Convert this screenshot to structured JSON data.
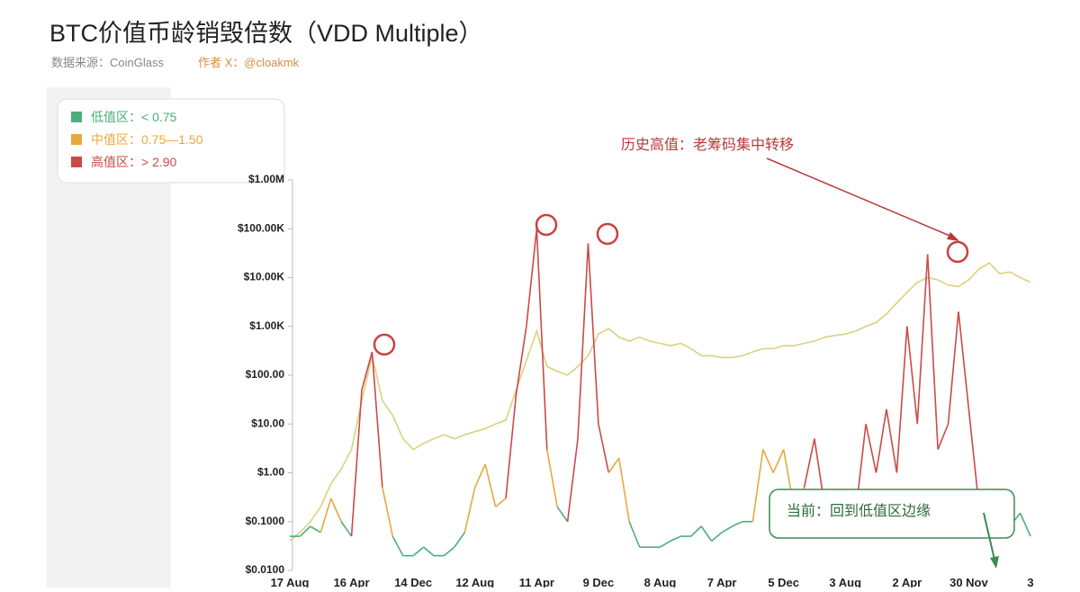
{
  "chart_data": {
    "type": "line",
    "title": "BTC价值币龄销毁倍数（VDD Multiple）",
    "source": "数据来源：CoinGlass",
    "author": "作者 X：@cloakmk",
    "log_scale": true,
    "grid": false,
    "legend_position": "upper left",
    "zones": [
      {
        "label": "低值区：< 0.75",
        "color": "#4dae7a"
      },
      {
        "label": "中值区：0.75—1.50",
        "color": "#e8a83e"
      },
      {
        "label": "高值区：> 2.90",
        "color": "#cc4a46"
      }
    ],
    "annotations": [
      "历史高值：老筹码集中转移",
      "当前：回到低值区边缘"
    ],
    "categories": [
      "17 Aug",
      null,
      null,
      null,
      null,
      null,
      "16 Apr",
      null,
      null,
      null,
      null,
      null,
      "14 Dec",
      null,
      null,
      null,
      null,
      null,
      "12 Aug",
      null,
      null,
      null,
      null,
      null,
      "11 Apr",
      null,
      null,
      null,
      null,
      null,
      "9 Dec",
      null,
      null,
      null,
      null,
      null,
      "8 Aug",
      null,
      null,
      null,
      null,
      null,
      "7 Apr",
      null,
      null,
      null,
      null,
      null,
      "5 Dec",
      null,
      null,
      null,
      null,
      null,
      "3 Aug",
      null,
      null,
      null,
      null,
      null,
      "2 Apr",
      null,
      null,
      null,
      null,
      null,
      "30 Nov",
      null,
      null,
      null,
      null,
      null,
      "3"
    ],
    "ylim": [
      0.01,
      1000000
    ],
    "yticks": [
      {
        "value": 0.01,
        "label": "$0.0100"
      },
      {
        "value": 0.1,
        "label": "$0.1000"
      },
      {
        "value": 1,
        "label": "$1.00"
      },
      {
        "value": 10,
        "label": "$10.00"
      },
      {
        "value": 100,
        "label": "$100.00"
      },
      {
        "value": 1000,
        "label": "$1.00K"
      },
      {
        "value": 10000,
        "label": "$10.00K"
      },
      {
        "value": 100000,
        "label": "$100.00K"
      },
      {
        "value": 1000000,
        "label": "$1.00M"
      }
    ],
    "series": [
      {
        "color": "#d9d27e",
        "values": [
          0.04,
          0.06,
          0.1,
          0.2,
          0.6,
          1.2,
          3,
          30,
          250,
          30,
          15,
          5,
          3,
          4,
          5,
          6,
          5,
          6,
          7,
          8,
          10,
          12,
          50,
          200,
          800,
          150,
          120,
          100,
          150,
          250,
          700,
          900,
          600,
          500,
          600,
          500,
          450,
          400,
          450,
          350,
          250,
          250,
          230,
          230,
          250,
          300,
          350,
          350,
          400,
          400,
          450,
          500,
          600,
          650,
          700,
          800,
          1000,
          1200,
          1800,
          3000,
          5000,
          8000,
          10000,
          9000,
          7000,
          6500,
          9000,
          15000,
          20000,
          12000,
          13000,
          10000,
          8000
        ]
      },
      {
        "values": [
          0.05,
          0.05,
          0.08,
          0.06,
          0.3,
          0.1,
          0.05,
          50,
          300,
          0.5,
          0.05,
          0.02,
          0.02,
          0.03,
          0.02,
          0.02,
          0.03,
          0.06,
          0.5,
          1.5,
          0.2,
          0.3,
          40,
          1000,
          100000,
          3,
          0.2,
          0.1,
          5,
          50000,
          10,
          1,
          2,
          0.1,
          0.03,
          0.03,
          0.03,
          0.04,
          0.05,
          0.05,
          0.08,
          0.04,
          0.06,
          0.08,
          0.1,
          0.1,
          3,
          1,
          3,
          0.2,
          0.5,
          5,
          0.2,
          0.2,
          0.1,
          0.15,
          10,
          1,
          20,
          1,
          1000,
          10,
          30000,
          3,
          10,
          2000,
          20,
          0.2,
          0.1,
          0.05,
          0.08,
          0.15,
          0.05
        ],
        "zone": [
          0,
          0,
          0,
          0,
          1,
          0,
          0,
          2,
          2,
          1,
          0,
          0,
          0,
          0,
          0,
          0,
          0,
          0,
          1,
          1,
          0,
          1,
          2,
          2,
          2,
          1,
          0,
          0,
          2,
          2,
          2,
          1,
          1,
          0,
          0,
          0,
          0,
          0,
          0,
          0,
          0,
          0,
          0,
          0,
          0,
          0,
          1,
          1,
          1,
          0,
          1,
          2,
          0,
          0,
          0,
          0,
          2,
          1,
          2,
          1,
          2,
          2,
          2,
          1,
          2,
          2,
          2,
          0,
          0,
          0,
          0,
          0,
          0
        ]
      }
    ]
  }
}
